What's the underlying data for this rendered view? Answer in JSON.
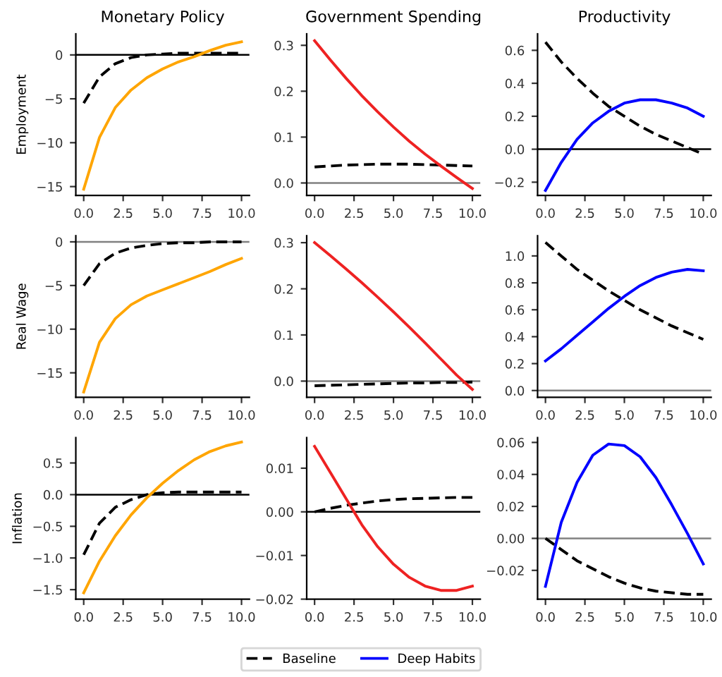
{
  "chart_data": [
    {
      "type": "line",
      "title": "Monetary Policy",
      "ylabel": "Employment",
      "x": [
        0,
        1,
        2,
        3,
        4,
        5,
        6,
        7,
        8,
        9,
        10
      ],
      "xlim": [
        -0.5,
        10.5
      ],
      "xticks": [
        {
          "value": 0,
          "label": "0.0"
        },
        {
          "value": 2.5,
          "label": "2.5"
        },
        {
          "value": 5,
          "label": "5.0"
        },
        {
          "value": 7.5,
          "label": "7.5"
        },
        {
          "value": 10,
          "label": "10.0"
        }
      ],
      "ylim": [
        -16.0,
        2.4
      ],
      "yticks": [
        {
          "value": -15,
          "label": "−15"
        },
        {
          "value": -10,
          "label": "−10"
        },
        {
          "value": -5,
          "label": "−5"
        },
        {
          "value": 0,
          "label": "0"
        }
      ],
      "ref_lines": [
        {
          "axis": "y",
          "value": 0,
          "color": "#000000"
        }
      ],
      "series": [
        {
          "color": "#000000",
          "line_style": "dashed",
          "values": [
            -5.5,
            -2.5,
            -1.0,
            -0.3,
            0.0,
            0.1,
            0.2,
            0.2,
            0.2,
            0.2,
            0.2
          ]
        },
        {
          "color": "#ffa500",
          "line_style": "solid",
          "values": [
            -15.3,
            -9.4,
            -6.0,
            -4.0,
            -2.6,
            -1.6,
            -0.8,
            -0.2,
            0.5,
            1.1,
            1.5
          ]
        }
      ]
    },
    {
      "type": "line",
      "title": "Government Spending",
      "x": [
        0,
        1,
        2,
        3,
        4,
        5,
        6,
        7,
        8,
        9,
        10
      ],
      "xlim": [
        -0.5,
        10.5
      ],
      "xticks": [
        {
          "value": 0,
          "label": "0.0"
        },
        {
          "value": 2.5,
          "label": "2.5"
        },
        {
          "value": 5,
          "label": "5.0"
        },
        {
          "value": 7.5,
          "label": "7.5"
        },
        {
          "value": 10,
          "label": "10.0"
        }
      ],
      "ylim": [
        -0.027,
        0.325
      ],
      "yticks": [
        {
          "value": 0,
          "label": "0.0"
        },
        {
          "value": 0.1,
          "label": "0.1"
        },
        {
          "value": 0.2,
          "label": "0.2"
        },
        {
          "value": 0.3,
          "label": "0.3"
        }
      ],
      "ref_lines": [
        {
          "axis": "y",
          "value": 0,
          "color": "#808080"
        }
      ],
      "series": [
        {
          "color": "#000000",
          "line_style": "dashed",
          "values": [
            0.035,
            0.037,
            0.039,
            0.04,
            0.041,
            0.041,
            0.041,
            0.04,
            0.039,
            0.038,
            0.037
          ]
        },
        {
          "color": "#ee2222",
          "line_style": "solid",
          "values": [
            0.31,
            0.268,
            0.228,
            0.19,
            0.155,
            0.122,
            0.091,
            0.063,
            0.037,
            0.012,
            -0.012
          ]
        }
      ]
    },
    {
      "type": "line",
      "title": "Productivity",
      "x": [
        0,
        1,
        2,
        3,
        4,
        5,
        6,
        7,
        8,
        9,
        10
      ],
      "xlim": [
        -0.5,
        10.5
      ],
      "xticks": [
        {
          "value": 0,
          "label": "0.0"
        },
        {
          "value": 2.5,
          "label": "2.5"
        },
        {
          "value": 5,
          "label": "5.0"
        },
        {
          "value": 7.5,
          "label": "7.5"
        },
        {
          "value": 10,
          "label": "10.0"
        }
      ],
      "ylim": [
        -0.28,
        0.7
      ],
      "yticks": [
        {
          "value": -0.2,
          "label": "−0.2"
        },
        {
          "value": 0,
          "label": "0.0"
        },
        {
          "value": 0.2,
          "label": "0.2"
        },
        {
          "value": 0.4,
          "label": "0.4"
        },
        {
          "value": 0.6,
          "label": "0.6"
        }
      ],
      "ref_lines": [
        {
          "axis": "y",
          "value": 0,
          "color": "#000000"
        }
      ],
      "series": [
        {
          "color": "#000000",
          "line_style": "dashed",
          "values": [
            0.65,
            0.53,
            0.43,
            0.34,
            0.26,
            0.2,
            0.14,
            0.09,
            0.05,
            0.01,
            -0.03
          ]
        },
        {
          "color": "#0000ff",
          "line_style": "solid",
          "values": [
            -0.25,
            -0.08,
            0.06,
            0.16,
            0.23,
            0.28,
            0.3,
            0.3,
            0.28,
            0.25,
            0.2
          ]
        }
      ]
    },
    {
      "type": "line",
      "ylabel": "Real Wage",
      "x": [
        0,
        1,
        2,
        3,
        4,
        5,
        6,
        7,
        8,
        9,
        10
      ],
      "xlim": [
        -0.5,
        10.5
      ],
      "xticks": [
        {
          "value": 0,
          "label": "0.0"
        },
        {
          "value": 2.5,
          "label": "2.5"
        },
        {
          "value": 5,
          "label": "5.0"
        },
        {
          "value": 7.5,
          "label": "7.5"
        },
        {
          "value": 10,
          "label": "10.0"
        }
      ],
      "ylim": [
        -17.8,
        0.7
      ],
      "yticks": [
        {
          "value": -15,
          "label": "−15"
        },
        {
          "value": -10,
          "label": "−10"
        },
        {
          "value": -5,
          "label": "−5"
        },
        {
          "value": 0,
          "label": "0"
        }
      ],
      "ref_lines": [
        {
          "axis": "y",
          "value": 0,
          "color": "#808080"
        }
      ],
      "series": [
        {
          "color": "#000000",
          "line_style": "dashed",
          "values": [
            -5.0,
            -2.5,
            -1.3,
            -0.7,
            -0.4,
            -0.2,
            -0.1,
            -0.1,
            0.0,
            0.0,
            0.0
          ]
        },
        {
          "color": "#ffa500",
          "line_style": "solid",
          "values": [
            -17.2,
            -11.5,
            -8.8,
            -7.2,
            -6.2,
            -5.5,
            -4.8,
            -4.1,
            -3.4,
            -2.6,
            -1.9
          ]
        }
      ]
    },
    {
      "type": "line",
      "x": [
        0,
        1,
        2,
        3,
        4,
        5,
        6,
        7,
        8,
        9,
        10
      ],
      "xlim": [
        -0.5,
        10.5
      ],
      "xticks": [
        {
          "value": 0,
          "label": "0.0"
        },
        {
          "value": 2.5,
          "label": "2.5"
        },
        {
          "value": 5,
          "label": "5.0"
        },
        {
          "value": 7.5,
          "label": "7.5"
        },
        {
          "value": 10,
          "label": "10.0"
        }
      ],
      "ylim": [
        -0.035,
        0.315
      ],
      "yticks": [
        {
          "value": 0,
          "label": "0.0"
        },
        {
          "value": 0.1,
          "label": "0.1"
        },
        {
          "value": 0.2,
          "label": "0.2"
        },
        {
          "value": 0.3,
          "label": "0.3"
        }
      ],
      "ref_lines": [
        {
          "axis": "y",
          "value": 0,
          "color": "#808080"
        }
      ],
      "series": [
        {
          "color": "#000000",
          "line_style": "dashed",
          "values": [
            -0.01,
            -0.009,
            -0.008,
            -0.007,
            -0.006,
            -0.005,
            -0.004,
            -0.004,
            -0.003,
            -0.003,
            -0.002
          ]
        },
        {
          "color": "#ee2222",
          "line_style": "solid",
          "values": [
            0.3,
            0.272,
            0.243,
            0.213,
            0.182,
            0.15,
            0.117,
            0.083,
            0.048,
            0.013,
            -0.018
          ]
        }
      ]
    },
    {
      "type": "line",
      "x": [
        0,
        1,
        2,
        3,
        4,
        5,
        6,
        7,
        8,
        9,
        10
      ],
      "xlim": [
        -0.5,
        10.5
      ],
      "xticks": [
        {
          "value": 0,
          "label": "0.0"
        },
        {
          "value": 2.5,
          "label": "2.5"
        },
        {
          "value": 5,
          "label": "5.0"
        },
        {
          "value": 7.5,
          "label": "7.5"
        },
        {
          "value": 10,
          "label": "10.0"
        }
      ],
      "ylim": [
        -0.05,
        1.15
      ],
      "yticks": [
        {
          "value": 0,
          "label": "0.0"
        },
        {
          "value": 0.2,
          "label": "0.2"
        },
        {
          "value": 0.4,
          "label": "0.4"
        },
        {
          "value": 0.6,
          "label": "0.6"
        },
        {
          "value": 0.8,
          "label": "0.8"
        },
        {
          "value": 1.0,
          "label": "1.0"
        }
      ],
      "ref_lines": [
        {
          "axis": "y",
          "value": 0,
          "color": "#808080"
        }
      ],
      "series": [
        {
          "color": "#000000",
          "line_style": "dashed",
          "values": [
            1.1,
            1.0,
            0.9,
            0.82,
            0.74,
            0.67,
            0.6,
            0.54,
            0.48,
            0.43,
            0.38
          ]
        },
        {
          "color": "#0000ff",
          "line_style": "solid",
          "values": [
            0.22,
            0.31,
            0.41,
            0.51,
            0.61,
            0.7,
            0.78,
            0.84,
            0.88,
            0.9,
            0.89
          ]
        }
      ]
    },
    {
      "type": "line",
      "ylabel": "Inflation",
      "x": [
        0,
        1,
        2,
        3,
        4,
        5,
        6,
        7,
        8,
        9,
        10
      ],
      "xlim": [
        -0.5,
        10.5
      ],
      "xticks": [
        {
          "value": 0,
          "label": "0.0"
        },
        {
          "value": 2.5,
          "label": "2.5"
        },
        {
          "value": 5,
          "label": "5.0"
        },
        {
          "value": 7.5,
          "label": "7.5"
        },
        {
          "value": 10,
          "label": "10.0"
        }
      ],
      "ylim": [
        -1.65,
        0.9
      ],
      "yticks": [
        {
          "value": -1.5,
          "label": "−1.5"
        },
        {
          "value": -1.0,
          "label": "−1.0"
        },
        {
          "value": -0.5,
          "label": "−0.5"
        },
        {
          "value": 0,
          "label": "0.0"
        },
        {
          "value": 0.5,
          "label": "0.5"
        }
      ],
      "ref_lines": [
        {
          "axis": "y",
          "value": 0,
          "color": "#000000"
        }
      ],
      "series": [
        {
          "color": "#000000",
          "line_style": "dashed",
          "values": [
            -0.95,
            -0.45,
            -0.2,
            -0.08,
            0.0,
            0.03,
            0.04,
            0.04,
            0.04,
            0.04,
            0.04
          ]
        },
        {
          "color": "#ffa500",
          "line_style": "solid",
          "values": [
            -1.55,
            -1.05,
            -0.65,
            -0.32,
            -0.05,
            0.18,
            0.38,
            0.55,
            0.68,
            0.77,
            0.83
          ]
        }
      ]
    },
    {
      "type": "line",
      "x": [
        0,
        1,
        2,
        3,
        4,
        5,
        6,
        7,
        8,
        9,
        10
      ],
      "xlim": [
        -0.5,
        10.5
      ],
      "xticks": [
        {
          "value": 0,
          "label": "0.0"
        },
        {
          "value": 2.5,
          "label": "2.5"
        },
        {
          "value": 5,
          "label": "5.0"
        },
        {
          "value": 7.5,
          "label": "7.5"
        },
        {
          "value": 10,
          "label": "10.0"
        }
      ],
      "ylim": [
        -0.02,
        0.017
      ],
      "yticks": [
        {
          "value": -0.02,
          "label": "−0.02"
        },
        {
          "value": -0.01,
          "label": "−0.01"
        },
        {
          "value": 0,
          "label": "0.00"
        },
        {
          "value": 0.01,
          "label": "0.01"
        }
      ],
      "ref_lines": [
        {
          "axis": "y",
          "value": 0,
          "color": "#000000"
        }
      ],
      "series": [
        {
          "color": "#000000",
          "line_style": "dashed",
          "values": [
            0.0,
            0.0008,
            0.0015,
            0.002,
            0.0025,
            0.0028,
            0.003,
            0.0031,
            0.0032,
            0.0033,
            0.0033
          ]
        },
        {
          "color": "#ee2222",
          "line_style": "solid",
          "values": [
            0.015,
            0.009,
            0.003,
            -0.003,
            -0.008,
            -0.012,
            -0.015,
            -0.017,
            -0.018,
            -0.018,
            -0.017
          ]
        }
      ]
    },
    {
      "type": "line",
      "legend": "bottom",
      "x": [
        0,
        1,
        2,
        3,
        4,
        5,
        6,
        7,
        8,
        9,
        10
      ],
      "xlim": [
        -0.5,
        10.5
      ],
      "xticks": [
        {
          "value": 0,
          "label": "0.0"
        },
        {
          "value": 2.5,
          "label": "2.5"
        },
        {
          "value": 5,
          "label": "5.0"
        },
        {
          "value": 7.5,
          "label": "7.5"
        },
        {
          "value": 10,
          "label": "10.0"
        }
      ],
      "ylim": [
        -0.038,
        0.063
      ],
      "yticks": [
        {
          "value": -0.02,
          "label": "−0.02"
        },
        {
          "value": 0,
          "label": "0.00"
        },
        {
          "value": 0.02,
          "label": "0.02"
        },
        {
          "value": 0.04,
          "label": "0.04"
        },
        {
          "value": 0.06,
          "label": "0.06"
        }
      ],
      "ref_lines": [
        {
          "axis": "y",
          "value": 0,
          "color": "#808080"
        }
      ],
      "series": [
        {
          "name": "Baseline",
          "color": "#000000",
          "line_style": "dashed",
          "values": [
            0.0,
            -0.007,
            -0.014,
            -0.019,
            -0.024,
            -0.028,
            -0.031,
            -0.033,
            -0.034,
            -0.035,
            -0.035
          ]
        },
        {
          "name": "Deep Habits",
          "color": "#0000ff",
          "line_style": "solid",
          "values": [
            -0.03,
            0.01,
            0.035,
            0.052,
            0.059,
            0.058,
            0.051,
            0.038,
            0.021,
            0.003,
            -0.016
          ]
        }
      ]
    }
  ]
}
